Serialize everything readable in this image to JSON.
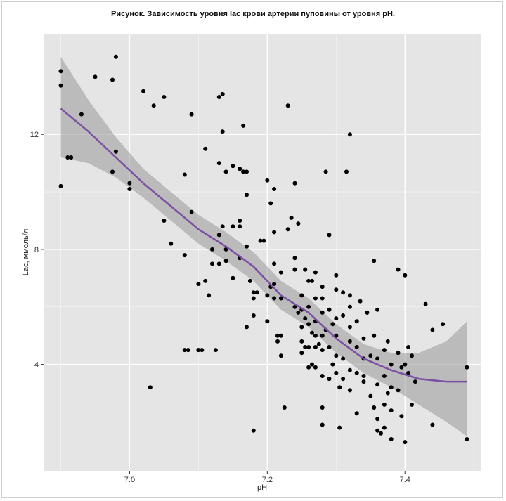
{
  "chart_data": {
    "type": "scatter",
    "title": "Рисунок. Зависимость уровня lac крови артерии пуповины от уровня pH.",
    "xlabel": "pH",
    "ylabel": "Lac, ммоль/л",
    "xlim": [
      6.875,
      7.51
    ],
    "ylim": [
      0.3,
      15.5
    ],
    "xticks": [
      7.0,
      7.2,
      7.4
    ],
    "xtick_labels": [
      "7.0",
      "7.2",
      "7.4"
    ],
    "yticks": [
      4,
      8,
      12
    ],
    "ytick_labels": [
      "4",
      "8",
      "12"
    ],
    "grid": true,
    "colors": {
      "panel": "#e5e5e5",
      "grid": "#ffffff",
      "points": "#000000",
      "smooth": "#7b4fa3",
      "band": "#999999"
    },
    "points": [
      [
        6.9,
        14.2
      ],
      [
        6.9,
        13.7
      ],
      [
        6.9,
        10.2
      ],
      [
        6.91,
        11.2
      ],
      [
        6.915,
        11.2
      ],
      [
        6.93,
        12.7
      ],
      [
        6.95,
        14.0
      ],
      [
        6.975,
        13.9
      ],
      [
        6.98,
        14.7
      ],
      [
        6.975,
        10.7
      ],
      [
        6.98,
        11.4
      ],
      [
        7.0,
        10.3
      ],
      [
        7.0,
        10.1
      ],
      [
        7.02,
        13.5
      ],
      [
        7.03,
        3.2
      ],
      [
        7.035,
        13.0
      ],
      [
        7.05,
        13.3
      ],
      [
        7.05,
        9.0
      ],
      [
        7.06,
        8.2
      ],
      [
        7.08,
        10.6
      ],
      [
        7.08,
        7.8
      ],
      [
        7.08,
        4.5
      ],
      [
        7.085,
        4.5
      ],
      [
        7.09,
        12.7
      ],
      [
        7.09,
        9.3
      ],
      [
        7.1,
        6.8
      ],
      [
        7.1,
        4.5
      ],
      [
        7.105,
        4.5
      ],
      [
        7.11,
        11.5
      ],
      [
        7.11,
        6.9
      ],
      [
        7.115,
        6.4
      ],
      [
        7.12,
        8.0
      ],
      [
        7.12,
        7.5
      ],
      [
        7.125,
        4.5
      ],
      [
        7.13,
        13.3
      ],
      [
        7.13,
        11.0
      ],
      [
        7.13,
        8.5
      ],
      [
        7.13,
        7.5
      ],
      [
        7.135,
        13.4
      ],
      [
        7.135,
        12.1
      ],
      [
        7.135,
        8.8
      ],
      [
        7.14,
        10.7
      ],
      [
        7.14,
        8.0
      ],
      [
        7.14,
        7.6
      ],
      [
        7.15,
        10.9
      ],
      [
        7.15,
        8.8
      ],
      [
        7.15,
        7.0
      ],
      [
        7.16,
        10.8
      ],
      [
        7.16,
        9.0
      ],
      [
        7.16,
        8.8
      ],
      [
        7.16,
        7.7
      ],
      [
        7.165,
        12.3
      ],
      [
        7.165,
        10.7
      ],
      [
        7.17,
        10.7
      ],
      [
        7.17,
        9.9
      ],
      [
        7.17,
        8.1
      ],
      [
        7.17,
        5.3
      ],
      [
        7.175,
        6.9
      ],
      [
        7.18,
        6.5
      ],
      [
        7.18,
        6.3
      ],
      [
        7.18,
        5.7
      ],
      [
        7.18,
        1.7
      ],
      [
        7.185,
        6.5
      ],
      [
        7.19,
        8.3
      ],
      [
        7.195,
        8.3
      ],
      [
        7.2,
        10.4
      ],
      [
        7.2,
        6.4
      ],
      [
        7.2,
        5.5
      ],
      [
        7.205,
        9.6
      ],
      [
        7.205,
        6.7
      ],
      [
        7.21,
        10.1
      ],
      [
        7.21,
        8.6
      ],
      [
        7.21,
        7.5
      ],
      [
        7.21,
        6.8
      ],
      [
        7.21,
        6.3
      ],
      [
        7.215,
        5.0
      ],
      [
        7.215,
        4.8
      ],
      [
        7.22,
        7.2
      ],
      [
        7.22,
        6.3
      ],
      [
        7.22,
        5.0
      ],
      [
        7.22,
        4.3
      ],
      [
        7.225,
        2.5
      ],
      [
        7.23,
        13.0
      ],
      [
        7.23,
        8.7
      ],
      [
        7.235,
        9.1
      ],
      [
        7.24,
        10.3
      ],
      [
        7.24,
        7.7
      ],
      [
        7.24,
        7.3
      ],
      [
        7.24,
        6.0
      ],
      [
        7.245,
        8.9
      ],
      [
        7.245,
        5.8
      ],
      [
        7.25,
        6.4
      ],
      [
        7.25,
        5.9
      ],
      [
        7.25,
        5.3
      ],
      [
        7.25,
        4.8
      ],
      [
        7.25,
        4.4
      ],
      [
        7.255,
        7.3
      ],
      [
        7.255,
        5.6
      ],
      [
        7.255,
        4.6
      ],
      [
        7.26,
        6.9
      ],
      [
        7.26,
        6.0
      ],
      [
        7.26,
        5.4
      ],
      [
        7.26,
        4.6
      ],
      [
        7.26,
        3.9
      ],
      [
        7.265,
        6.9
      ],
      [
        7.265,
        5.1
      ],
      [
        7.265,
        4.0
      ],
      [
        7.27,
        7.2
      ],
      [
        7.27,
        6.3
      ],
      [
        7.27,
        5.5
      ],
      [
        7.27,
        5.0
      ],
      [
        7.27,
        4.6
      ],
      [
        7.27,
        3.9
      ],
      [
        7.275,
        4.7
      ],
      [
        7.28,
        6.7
      ],
      [
        7.28,
        6.3
      ],
      [
        7.28,
        5.8
      ],
      [
        7.28,
        5.0
      ],
      [
        7.28,
        4.5
      ],
      [
        7.28,
        3.6
      ],
      [
        7.28,
        2.5
      ],
      [
        7.28,
        1.9
      ],
      [
        7.285,
        10.7
      ],
      [
        7.285,
        5.2
      ],
      [
        7.29,
        8.5
      ],
      [
        7.29,
        5.9
      ],
      [
        7.29,
        4.6
      ],
      [
        7.29,
        3.5
      ],
      [
        7.295,
        5.4
      ],
      [
        7.295,
        4.0
      ],
      [
        7.3,
        7.1
      ],
      [
        7.3,
        6.6
      ],
      [
        7.3,
        5.6
      ],
      [
        7.3,
        5.0
      ],
      [
        7.3,
        4.3
      ],
      [
        7.3,
        3.7
      ],
      [
        7.305,
        3.2
      ],
      [
        7.305,
        1.8
      ],
      [
        7.31,
        6.5
      ],
      [
        7.31,
        5.7
      ],
      [
        7.31,
        4.2
      ],
      [
        7.31,
        3.5
      ],
      [
        7.315,
        10.7
      ],
      [
        7.32,
        12.0
      ],
      [
        7.32,
        6.4
      ],
      [
        7.32,
        6.0
      ],
      [
        7.32,
        5.3
      ],
      [
        7.32,
        4.8
      ],
      [
        7.32,
        3.8
      ],
      [
        7.32,
        3.1
      ],
      [
        7.33,
        5.5
      ],
      [
        7.33,
        4.6
      ],
      [
        7.33,
        3.7
      ],
      [
        7.33,
        2.3
      ],
      [
        7.335,
        6.2
      ],
      [
        7.34,
        4.9
      ],
      [
        7.34,
        4.2
      ],
      [
        7.34,
        3.6
      ],
      [
        7.34,
        3.4
      ],
      [
        7.345,
        5.8
      ],
      [
        7.35,
        4.3
      ],
      [
        7.35,
        2.9
      ],
      [
        7.355,
        7.6
      ],
      [
        7.355,
        5.0
      ],
      [
        7.355,
        2.5
      ],
      [
        7.36,
        5.9
      ],
      [
        7.36,
        4.2
      ],
      [
        7.36,
        3.3
      ],
      [
        7.36,
        2.1
      ],
      [
        7.36,
        1.7
      ],
      [
        7.365,
        1.6
      ],
      [
        7.37,
        4.5
      ],
      [
        7.37,
        3.6
      ],
      [
        7.37,
        2.6
      ],
      [
        7.37,
        1.8
      ],
      [
        7.375,
        4.8
      ],
      [
        7.375,
        3.0
      ],
      [
        7.38,
        4.0
      ],
      [
        7.38,
        3.2
      ],
      [
        7.38,
        2.4
      ],
      [
        7.38,
        1.4
      ],
      [
        7.39,
        7.3
      ],
      [
        7.39,
        4.4
      ],
      [
        7.39,
        3.1
      ],
      [
        7.395,
        3.9
      ],
      [
        7.395,
        2.2
      ],
      [
        7.4,
        7.1
      ],
      [
        7.4,
        4.0
      ],
      [
        7.4,
        1.3
      ],
      [
        7.405,
        4.6
      ],
      [
        7.405,
        3.7
      ],
      [
        7.41,
        4.3
      ],
      [
        7.41,
        2.6
      ],
      [
        7.415,
        3.4
      ],
      [
        7.43,
        6.1
      ],
      [
        7.44,
        5.2
      ],
      [
        7.44,
        1.9
      ],
      [
        7.455,
        5.4
      ],
      [
        7.49,
        3.9
      ],
      [
        7.49,
        1.4
      ]
    ],
    "smooth_x": [
      6.9,
      6.94,
      6.98,
      7.02,
      7.06,
      7.1,
      7.14,
      7.18,
      7.22,
      7.26,
      7.3,
      7.34,
      7.38,
      7.42,
      7.46,
      7.49
    ],
    "smooth_y": [
      12.9,
      12.1,
      11.2,
      10.3,
      9.5,
      8.7,
      8.1,
      7.4,
      6.4,
      5.8,
      4.9,
      4.2,
      3.8,
      3.5,
      3.4,
      3.4
    ],
    "band_low": [
      11.2,
      11.0,
      10.5,
      9.8,
      9.0,
      8.2,
      7.6,
      6.9,
      5.9,
      5.3,
      4.4,
      3.7,
      3.2,
      2.6,
      2.0,
      1.5
    ],
    "band_high": [
      14.7,
      13.2,
      11.9,
      10.8,
      10.0,
      9.2,
      8.6,
      7.9,
      6.9,
      6.3,
      5.4,
      4.7,
      4.4,
      4.4,
      4.8,
      5.5
    ]
  }
}
